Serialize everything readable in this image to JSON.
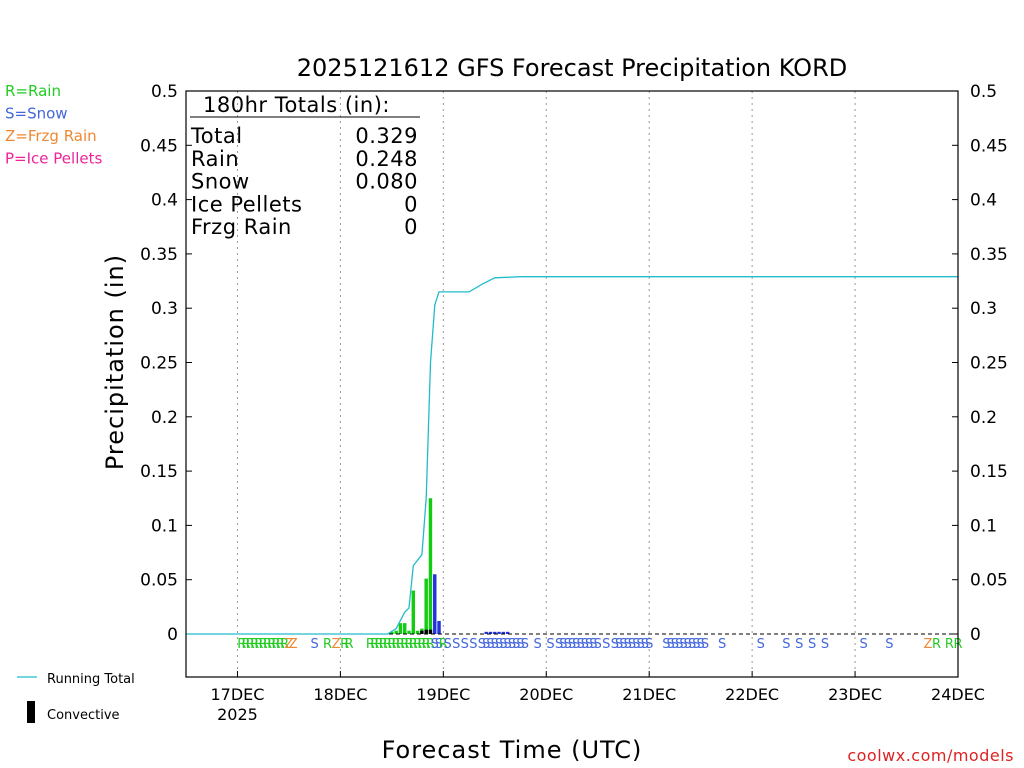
{
  "chart_data": {
    "type": "bar",
    "title": "2025121612 GFS Forecast Precipitation KORD",
    "xlabel": "Forecast Time (UTC)",
    "ylabel": "Precipitation (in)",
    "credit": "coolwx.com/models",
    "ylim": [
      0,
      0.5
    ],
    "xlim": [
      "2025-12-16T12:00",
      "2025-12-24T00:00"
    ],
    "yticks": [
      0,
      0.05,
      0.1,
      0.15,
      0.2,
      0.25,
      0.3,
      0.35,
      0.4,
      0.45,
      0.5
    ],
    "ytick_labels": [
      "0",
      "0.05",
      "0.1",
      "0.15",
      "0.2",
      "0.25",
      "0.3",
      "0.35",
      "0.4",
      "0.45",
      "0.5"
    ],
    "xticks": [
      {
        "t": "2025-12-17T00:00",
        "label": "17DEC",
        "sub": "2025"
      },
      {
        "t": "2025-12-18T00:00",
        "label": "18DEC",
        "sub": ""
      },
      {
        "t": "2025-12-19T00:00",
        "label": "19DEC",
        "sub": ""
      },
      {
        "t": "2025-12-20T00:00",
        "label": "20DEC",
        "sub": ""
      },
      {
        "t": "2025-12-21T00:00",
        "label": "21DEC",
        "sub": ""
      },
      {
        "t": "2025-12-22T00:00",
        "label": "22DEC",
        "sub": ""
      },
      {
        "t": "2025-12-23T00:00",
        "label": "23DEC",
        "sub": ""
      },
      {
        "t": "2025-12-24T00:00",
        "label": "24DEC",
        "sub": ""
      }
    ],
    "grid": "vertical dotted at day boundaries",
    "type_legend": [
      {
        "text": "R=Rain",
        "color": "#22cc22"
      },
      {
        "text": "S=Snow",
        "color": "#4466dd"
      },
      {
        "text": "Z=Frzg Rain",
        "color": "#ee8833"
      },
      {
        "text": "P=Ice Pellets",
        "color": "#ee2299"
      }
    ],
    "series_legend": [
      {
        "name": "Running Total",
        "kind": "line",
        "color": "#22bbcc"
      },
      {
        "name": "Convective",
        "kind": "bar",
        "color": "#000000"
      }
    ],
    "totals": {
      "heading": "180hr Totals (in):",
      "rows": [
        {
          "label": "Total",
          "value": "0.329"
        },
        {
          "label": "Rain",
          "value": "0.248"
        },
        {
          "label": "Snow",
          "value": "0.080"
        },
        {
          "label": "Ice Pellets",
          "value": "0"
        },
        {
          "label": "Frzg Rain",
          "value": "0"
        }
      ]
    },
    "bars": [
      {
        "t": "2025-12-18T12:00",
        "value": 0.002,
        "type": "rain"
      },
      {
        "t": "2025-12-18T13:00",
        "value": 0.003,
        "type": "rain"
      },
      {
        "t": "2025-12-18T14:00",
        "value": 0.01,
        "type": "rain"
      },
      {
        "t": "2025-12-18T15:00",
        "value": 0.01,
        "type": "rain"
      },
      {
        "t": "2025-12-18T16:00",
        "value": 0.003,
        "type": "rain"
      },
      {
        "t": "2025-12-18T17:00",
        "value": 0.04,
        "type": "rain"
      },
      {
        "t": "2025-12-18T18:00",
        "value": 0.003,
        "type": "rain"
      },
      {
        "t": "2025-12-18T19:00",
        "value": 0.005,
        "type": "rain"
      },
      {
        "t": "2025-12-18T20:00",
        "value": 0.051,
        "type": "rain"
      },
      {
        "t": "2025-12-18T21:00",
        "value": 0.125,
        "type": "rain"
      },
      {
        "t": "2025-12-18T22:00",
        "value": 0.055,
        "type": "snow"
      },
      {
        "t": "2025-12-18T23:00",
        "value": 0.012,
        "type": "snow"
      },
      {
        "t": "2025-12-19T10:00",
        "value": 0.002,
        "type": "snow"
      },
      {
        "t": "2025-12-19T11:00",
        "value": 0.002,
        "type": "snow"
      },
      {
        "t": "2025-12-19T12:00",
        "value": 0.002,
        "type": "snow"
      },
      {
        "t": "2025-12-19T13:00",
        "value": 0.002,
        "type": "snow"
      },
      {
        "t": "2025-12-19T14:00",
        "value": 0.002,
        "type": "snow"
      },
      {
        "t": "2025-12-19T15:00",
        "value": 0.002,
        "type": "snow"
      }
    ],
    "convective": [
      {
        "t": "2025-12-18T19:00",
        "value": 0.003
      },
      {
        "t": "2025-12-18T20:00",
        "value": 0.004
      },
      {
        "t": "2025-12-18T21:00",
        "value": 0.004
      }
    ],
    "running_total": [
      {
        "t": "2025-12-16T12:00",
        "value": 0
      },
      {
        "t": "2025-12-18T11:00",
        "value": 0
      },
      {
        "t": "2025-12-18T13:00",
        "value": 0.005
      },
      {
        "t": "2025-12-18T15:00",
        "value": 0.02
      },
      {
        "t": "2025-12-18T16:00",
        "value": 0.024
      },
      {
        "t": "2025-12-18T17:00",
        "value": 0.063
      },
      {
        "t": "2025-12-18T19:00",
        "value": 0.073
      },
      {
        "t": "2025-12-18T20:00",
        "value": 0.125
      },
      {
        "t": "2025-12-18T21:00",
        "value": 0.25
      },
      {
        "t": "2025-12-18T22:00",
        "value": 0.303
      },
      {
        "t": "2025-12-18T23:00",
        "value": 0.315
      },
      {
        "t": "2025-12-19T06:00",
        "value": 0.315
      },
      {
        "t": "2025-12-19T09:00",
        "value": 0.322
      },
      {
        "t": "2025-12-19T12:00",
        "value": 0.328
      },
      {
        "t": "2025-12-19T18:00",
        "value": 0.329
      },
      {
        "t": "2025-12-24T00:00",
        "value": 0.329
      }
    ],
    "type_markers": [
      {
        "t": "2025-12-17T01:00",
        "code": "R"
      },
      {
        "t": "2025-12-17T02:00",
        "code": "R"
      },
      {
        "t": "2025-12-17T03:00",
        "code": "R"
      },
      {
        "t": "2025-12-17T04:00",
        "code": "R"
      },
      {
        "t": "2025-12-17T05:00",
        "code": "R"
      },
      {
        "t": "2025-12-17T06:00",
        "code": "R"
      },
      {
        "t": "2025-12-17T07:00",
        "code": "R"
      },
      {
        "t": "2025-12-17T08:00",
        "code": "R"
      },
      {
        "t": "2025-12-17T09:00",
        "code": "R"
      },
      {
        "t": "2025-12-17T10:00",
        "code": "R"
      },
      {
        "t": "2025-12-17T11:00",
        "code": "R"
      },
      {
        "t": "2025-12-17T12:00",
        "code": "Z"
      },
      {
        "t": "2025-12-17T13:00",
        "code": "Z"
      },
      {
        "t": "2025-12-17T18:00",
        "code": "S"
      },
      {
        "t": "2025-12-17T21:00",
        "code": "R"
      },
      {
        "t": "2025-12-17T23:00",
        "code": "Z"
      },
      {
        "t": "2025-12-18T01:00",
        "code": "R"
      },
      {
        "t": "2025-12-18T02:00",
        "code": "R"
      },
      {
        "t": "2025-12-18T07:00",
        "code": "R"
      },
      {
        "t": "2025-12-18T08:00",
        "code": "R"
      },
      {
        "t": "2025-12-18T09:00",
        "code": "R"
      },
      {
        "t": "2025-12-18T10:00",
        "code": "R"
      },
      {
        "t": "2025-12-18T11:00",
        "code": "R"
      },
      {
        "t": "2025-12-18T12:00",
        "code": "R"
      },
      {
        "t": "2025-12-18T13:00",
        "code": "R"
      },
      {
        "t": "2025-12-18T14:00",
        "code": "R"
      },
      {
        "t": "2025-12-18T15:00",
        "code": "R"
      },
      {
        "t": "2025-12-18T16:00",
        "code": "R"
      },
      {
        "t": "2025-12-18T17:00",
        "code": "R"
      },
      {
        "t": "2025-12-18T18:00",
        "code": "R"
      },
      {
        "t": "2025-12-18T19:00",
        "code": "R"
      },
      {
        "t": "2025-12-18T20:00",
        "code": "R"
      },
      {
        "t": "2025-12-18T21:00",
        "code": "R"
      },
      {
        "t": "2025-12-18T22:00",
        "code": "S"
      },
      {
        "t": "2025-12-18T23:00",
        "code": "S"
      },
      {
        "t": "2025-12-19T00:00",
        "code": "R"
      },
      {
        "t": "2025-12-19T01:00",
        "code": "S"
      },
      {
        "t": "2025-12-19T03:00",
        "code": "S"
      },
      {
        "t": "2025-12-19T05:00",
        "code": "S"
      },
      {
        "t": "2025-12-19T07:00",
        "code": "S"
      },
      {
        "t": "2025-12-19T09:00",
        "code": "S"
      },
      {
        "t": "2025-12-19T10:00",
        "code": "S"
      },
      {
        "t": "2025-12-19T11:00",
        "code": "S"
      },
      {
        "t": "2025-12-19T12:00",
        "code": "S"
      },
      {
        "t": "2025-12-19T13:00",
        "code": "S"
      },
      {
        "t": "2025-12-19T14:00",
        "code": "S"
      },
      {
        "t": "2025-12-19T15:00",
        "code": "S"
      },
      {
        "t": "2025-12-19T16:00",
        "code": "S"
      },
      {
        "t": "2025-12-19T17:00",
        "code": "S"
      },
      {
        "t": "2025-12-19T18:00",
        "code": "S"
      },
      {
        "t": "2025-12-19T19:00",
        "code": "S"
      },
      {
        "t": "2025-12-19T22:00",
        "code": "S"
      },
      {
        "t": "2025-12-20T01:00",
        "code": "S"
      },
      {
        "t": "2025-12-20T03:00",
        "code": "S"
      },
      {
        "t": "2025-12-20T04:00",
        "code": "S"
      },
      {
        "t": "2025-12-20T05:00",
        "code": "S"
      },
      {
        "t": "2025-12-20T06:00",
        "code": "S"
      },
      {
        "t": "2025-12-20T07:00",
        "code": "S"
      },
      {
        "t": "2025-12-20T08:00",
        "code": "S"
      },
      {
        "t": "2025-12-20T09:00",
        "code": "S"
      },
      {
        "t": "2025-12-20T10:00",
        "code": "S"
      },
      {
        "t": "2025-12-20T11:00",
        "code": "S"
      },
      {
        "t": "2025-12-20T12:00",
        "code": "S"
      },
      {
        "t": "2025-12-20T14:00",
        "code": "S"
      },
      {
        "t": "2025-12-20T16:00",
        "code": "S"
      },
      {
        "t": "2025-12-20T17:00",
        "code": "S"
      },
      {
        "t": "2025-12-20T18:00",
        "code": "S"
      },
      {
        "t": "2025-12-20T19:00",
        "code": "S"
      },
      {
        "t": "2025-12-20T20:00",
        "code": "S"
      },
      {
        "t": "2025-12-20T21:00",
        "code": "S"
      },
      {
        "t": "2025-12-20T22:00",
        "code": "S"
      },
      {
        "t": "2025-12-20T23:00",
        "code": "S"
      },
      {
        "t": "2025-12-21T00:00",
        "code": "S"
      },
      {
        "t": "2025-12-21T04:00",
        "code": "S"
      },
      {
        "t": "2025-12-21T05:00",
        "code": "S"
      },
      {
        "t": "2025-12-21T06:00",
        "code": "S"
      },
      {
        "t": "2025-12-21T07:00",
        "code": "S"
      },
      {
        "t": "2025-12-21T08:00",
        "code": "S"
      },
      {
        "t": "2025-12-21T09:00",
        "code": "S"
      },
      {
        "t": "2025-12-21T10:00",
        "code": "S"
      },
      {
        "t": "2025-12-21T11:00",
        "code": "S"
      },
      {
        "t": "2025-12-21T12:00",
        "code": "S"
      },
      {
        "t": "2025-12-21T13:00",
        "code": "S"
      },
      {
        "t": "2025-12-21T17:00",
        "code": "S"
      },
      {
        "t": "2025-12-22T02:00",
        "code": "S"
      },
      {
        "t": "2025-12-22T08:00",
        "code": "S"
      },
      {
        "t": "2025-12-22T11:00",
        "code": "S"
      },
      {
        "t": "2025-12-22T14:00",
        "code": "S"
      },
      {
        "t": "2025-12-22T17:00",
        "code": "S"
      },
      {
        "t": "2025-12-23T02:00",
        "code": "S"
      },
      {
        "t": "2025-12-23T08:00",
        "code": "S"
      },
      {
        "t": "2025-12-23T17:00",
        "code": "Z"
      },
      {
        "t": "2025-12-23T19:00",
        "code": "R"
      },
      {
        "t": "2025-12-23T22:00",
        "code": "R"
      },
      {
        "t": "2025-12-24T00:00",
        "code": "R"
      }
    ],
    "colors": {
      "rain": "#11cc11",
      "snow": "#2233dd",
      "running_total": "#22bbcc",
      "marker_R": "#22cc22",
      "marker_S": "#4466dd",
      "marker_Z": "#ee8833",
      "marker_P": "#ee2299"
    }
  }
}
